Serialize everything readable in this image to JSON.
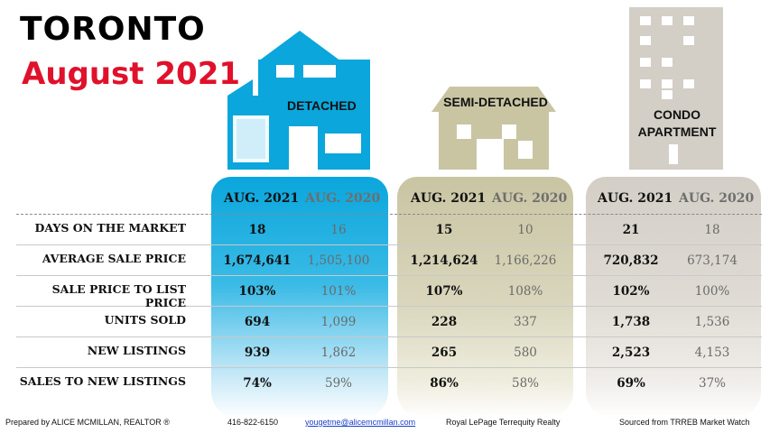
{
  "title": {
    "city": "TORONTO",
    "period": "August 2021"
  },
  "categories": [
    {
      "name": "DETACHED",
      "key": "detached",
      "color": "#0aa6dc"
    },
    {
      "name": "SEMI-DETACHED",
      "key": "semi",
      "color": "#c9c5a3"
    },
    {
      "name": "CONDO APARTMENT",
      "key": "condo",
      "color": "#d3cec6"
    }
  ],
  "labels": {
    "detached": "DETACHED",
    "semi": "SEMI-DETACHED",
    "condo_line1": "CONDO",
    "condo_line2": "APARTMENT"
  },
  "headers": {
    "current": "AUG. 2021",
    "previous": "AUG. 2020"
  },
  "rows": [
    {
      "label": "DAYS ON THE MARKET",
      "detached": [
        "18",
        "16"
      ],
      "semi": [
        "15",
        "10"
      ],
      "condo": [
        "21",
        "18"
      ]
    },
    {
      "label": "AVERAGE SALE PRICE",
      "detached": [
        "1,674,641",
        "1,505,100"
      ],
      "semi": [
        "1,214,624",
        "1,166,226"
      ],
      "condo": [
        "720,832",
        "673,174"
      ]
    },
    {
      "label": "SALE PRICE TO LIST PRICE",
      "detached": [
        "103%",
        "101%"
      ],
      "semi": [
        "107%",
        "108%"
      ],
      "condo": [
        "102%",
        "100%"
      ]
    },
    {
      "label": "UNITS SOLD",
      "detached": [
        "694",
        "1,099"
      ],
      "semi": [
        "228",
        "337"
      ],
      "condo": [
        "1,738",
        "1,536"
      ]
    },
    {
      "label": "NEW LISTINGS",
      "detached": [
        "939",
        "1,862"
      ],
      "semi": [
        "265",
        "580"
      ],
      "condo": [
        "2,523",
        "4,153"
      ]
    },
    {
      "label": "SALES TO NEW LISTINGS",
      "detached": [
        "74%",
        "59%"
      ],
      "semi": [
        "86%",
        "58%"
      ],
      "condo": [
        "69%",
        "37%"
      ]
    }
  ],
  "footer": {
    "prepared_by": "Prepared by ALICE MCMILLAN, REALTOR ®",
    "phone": "416-822-6150",
    "email": "yougetme@alicemcmillan.com",
    "brokerage": "Royal LePage Terrequity Realty",
    "source": "Sourced from TRREB Market Watch"
  }
}
